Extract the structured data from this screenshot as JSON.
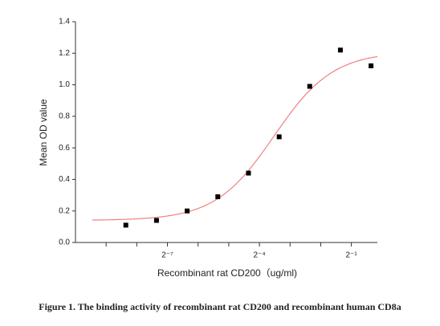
{
  "chart_data": {
    "type": "scatter",
    "caption": "Figure 1. The binding activity of recombinant rat CD200 and recombinant human CD8a",
    "xlabel": "Recombinant rat CD200（ug/ml)",
    "ylabel": "Mean OD value",
    "xscale": "log2",
    "x": [
      0.00305,
      0.0061,
      0.0122,
      0.0244,
      0.0488,
      0.0977,
      0.195,
      0.39,
      0.78
    ],
    "series": [
      {
        "color": "#000000",
        "values": [
          0.11,
          0.14,
          0.2,
          0.29,
          0.44,
          0.67,
          0.99,
          1.22,
          1.12
        ]
      }
    ],
    "fit": {
      "color": "#f08080",
      "bottom": 0.14,
      "top": 1.21,
      "ec50": 0.087,
      "hill": 1.5
    },
    "xlim": [
      0.0009765625,
      0.9
    ],
    "xticks": [
      {
        "value": 0.0078125,
        "label": "2⁻⁷"
      },
      {
        "value": 0.0625,
        "label": "2⁻⁴"
      },
      {
        "value": 0.5,
        "label": "2⁻¹"
      }
    ],
    "xminor_ticks": [
      0.001953125,
      0.00390625,
      0.015625,
      0.03125,
      0.125,
      0.25
    ],
    "ylim": [
      0,
      1.4
    ],
    "yticks": [
      {
        "value": 0,
        "label": "0.0"
      },
      0.2,
      0.4,
      0.6,
      0.8,
      {
        "value": 1,
        "label": "1.0"
      },
      1.2,
      1.4
    ]
  }
}
